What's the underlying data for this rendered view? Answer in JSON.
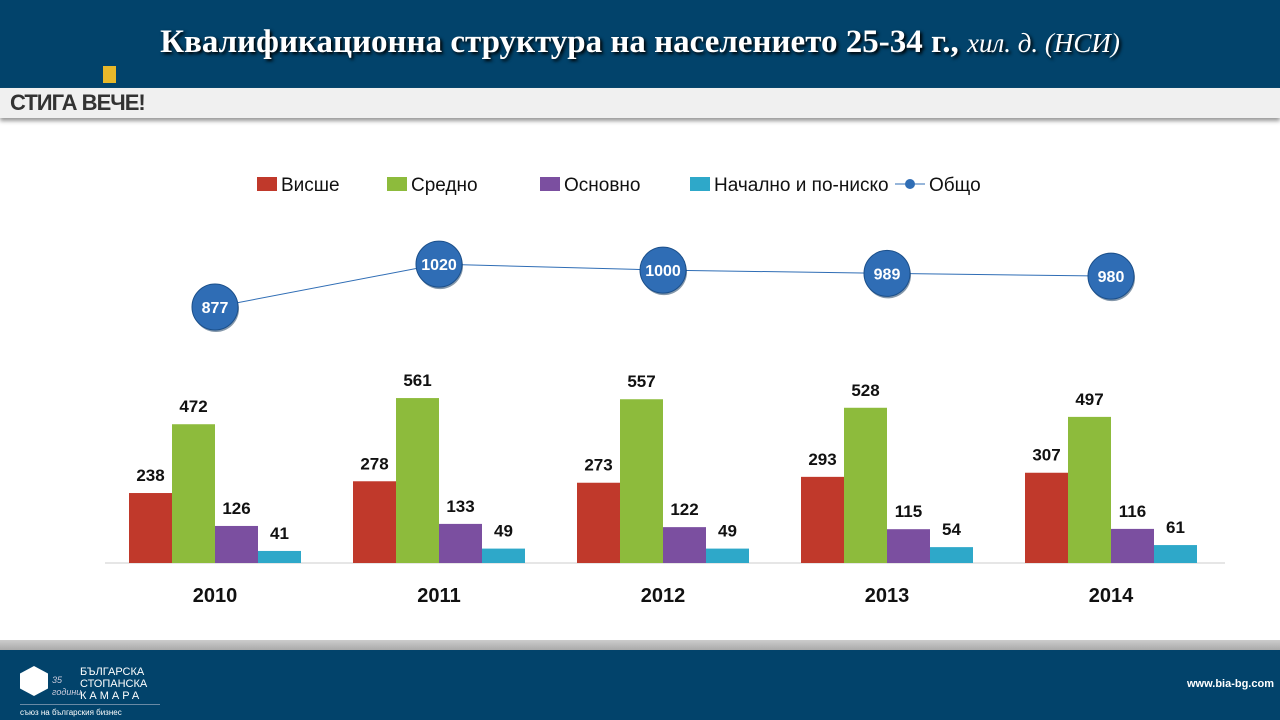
{
  "header": {
    "title": "Квалификационна структура на населението 25-34 г.,",
    "subtitle": "хил. д. (НСИ)"
  },
  "brand": {
    "stiga": "СТИГА ВЕЧЕ!"
  },
  "footer": {
    "logo_lines": [
      "БЪЛГАРСКА",
      "СТОПАНСКА",
      "КАМАРА"
    ],
    "logo_badge": "35 години",
    "tagline": "съюз на българския бизнес",
    "url": "www.bia-bg.com"
  },
  "chart_data": {
    "type": "bar",
    "categories": [
      "2010",
      "2011",
      "2012",
      "2013",
      "2014"
    ],
    "series": [
      {
        "name": "Висше",
        "color": "#c0392b",
        "values": [
          238,
          278,
          273,
          293,
          307
        ]
      },
      {
        "name": "Средно",
        "color": "#8dbb3c",
        "values": [
          472,
          561,
          557,
          528,
          497
        ]
      },
      {
        "name": "Основно",
        "color": "#7b4fa0",
        "values": [
          126,
          133,
          122,
          115,
          116
        ]
      },
      {
        "name": "Начално и по-ниско",
        "color": "#2ea8c9",
        "values": [
          41,
          49,
          49,
          54,
          61
        ]
      }
    ],
    "line_series": {
      "name": "Общо",
      "type": "line",
      "color": "#2f6db5",
      "values": [
        877,
        1020,
        1000,
        989,
        980
      ]
    },
    "legend": "top"
  }
}
